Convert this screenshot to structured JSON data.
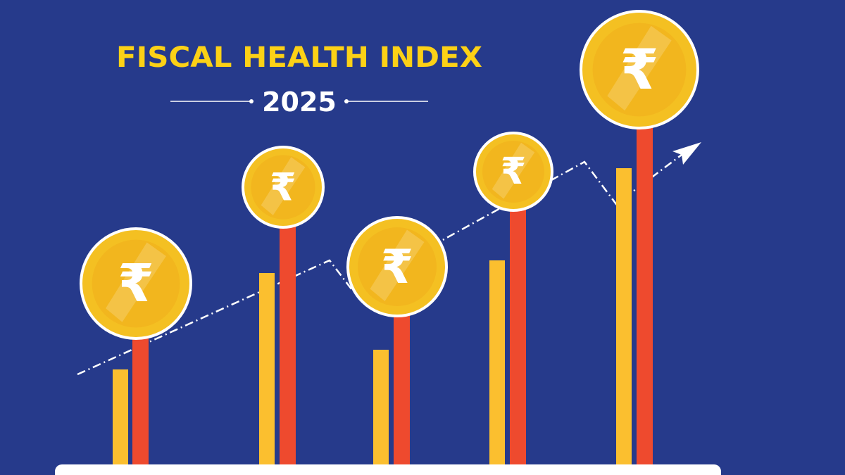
{
  "header": {
    "title": "FISCAL HEALTH INDEX",
    "year": "2025"
  },
  "coin_symbol": "₹"
}
